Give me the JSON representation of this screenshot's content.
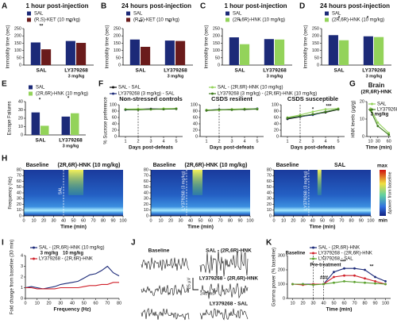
{
  "chart_data": [
    {
      "type": "bar",
      "panel": "A",
      "title": "1 hour post-injection",
      "y_label": "Immobility time (sec)",
      "categories": [
        "SAL",
        "LY379268"
      ],
      "category_notes": [
        null,
        "3 mg/kg"
      ],
      "series": [
        {
          "name": "SAL",
          "color": "#1c2a78",
          "values": [
            155,
            165
          ]
        },
        {
          "name": "(R,S)-KET (10 mg/kg)",
          "color": "#6a1b1b",
          "values": [
            108,
            152
          ]
        }
      ],
      "ylim": [
        0,
        250
      ],
      "yticks": [
        0,
        50,
        100,
        150,
        200,
        250
      ],
      "annotations": [
        "**",
        "*"
      ]
    },
    {
      "type": "bar",
      "panel": "B",
      "title": "24 hours post-injection",
      "y_label": "Immobility time (sec)",
      "categories": [
        "SAL",
        "LY379268"
      ],
      "category_notes": [
        null,
        "3 mg/kg"
      ],
      "series": [
        {
          "name": "SAL",
          "color": "#1c2a78",
          "values": [
            175,
            168
          ]
        },
        {
          "name": "(R,S)-KET (10 mg/kg)",
          "color": "#6a1b1b",
          "values": [
            125,
            165
          ]
        }
      ],
      "ylim": [
        0,
        250
      ],
      "yticks": [
        0,
        50,
        100,
        150,
        200,
        250
      ],
      "annotations": [
        "**",
        "*"
      ]
    },
    {
      "type": "bar",
      "panel": "C",
      "title": "1 hour post-injection",
      "y_label": "Immobility time (sec)",
      "categories": [
        "SAL",
        "LY379268"
      ],
      "category_notes": [
        null,
        "3 mg/kg"
      ],
      "series": [
        {
          "name": "SAL",
          "color": "#1c2a78",
          "values": [
            190,
            178
          ]
        },
        {
          "name": "(2R,6R)-HNK (10 mg/kg)",
          "color": "#93d35a",
          "values": [
            143,
            175
          ]
        }
      ],
      "ylim": [
        0,
        250
      ],
      "yticks": [
        0,
        50,
        100,
        150,
        200,
        250
      ],
      "annotations": [
        "*"
      ]
    },
    {
      "type": "bar",
      "panel": "D",
      "title": "24 hours post-injection",
      "y_label": "Immobility time (sec)",
      "categories": [
        "SAL",
        "LY379268"
      ],
      "category_notes": [
        null,
        "3 mg/kg"
      ],
      "series": [
        {
          "name": "SAL",
          "color": "#1c2a78",
          "values": [
            205,
            197
          ]
        },
        {
          "name": "(2R,6R)-HNK (10 mg/kg)",
          "color": "#93d35a",
          "values": [
            170,
            192
          ]
        }
      ],
      "ylim": [
        0,
        250
      ],
      "yticks": [
        0,
        50,
        100,
        150,
        200,
        250
      ],
      "annotations": [
        "*",
        "*"
      ]
    },
    {
      "type": "bar",
      "panel": "E",
      "y_label": "Escape  Failures",
      "categories": [
        "SAL",
        "LY379268"
      ],
      "category_notes": [
        null,
        "3 mg/kg"
      ],
      "series": [
        {
          "name": "SAL",
          "color": "#1c2a78",
          "values": [
            27,
            22
          ]
        },
        {
          "name": "(2R,6R)-HNK (10 mg/kg)",
          "color": "#93d35a",
          "values": [
            11,
            26
          ]
        }
      ],
      "ylim": [
        0,
        40
      ],
      "yticks": [
        0,
        10,
        20,
        30,
        40
      ],
      "annotations": [
        "*",
        "*"
      ]
    },
    {
      "type": "line",
      "panel": "F",
      "title": "Non-stressed controls",
      "y_label": "% Sucrose preference",
      "x_label": "Days post-defeats",
      "x": [
        1,
        2,
        3,
        4,
        5
      ],
      "xlim": [
        0.5,
        5.5
      ],
      "xticks": [
        1,
        2,
        3,
        4,
        5
      ],
      "ylim": [
        0,
        100
      ],
      "yticks": [
        0,
        20,
        40,
        60,
        80,
        100
      ],
      "event_lines": [
        2
      ],
      "series": [
        {
          "name": "SAL - SAL",
          "color": "#111111",
          "values": [
            85,
            86,
            87,
            86,
            88
          ]
        },
        {
          "name": "LY379268 (3 mg/kg) - SAL",
          "color": "#1c2a78",
          "values": [
            84,
            85,
            86,
            87,
            87
          ]
        },
        {
          "name": "SAL - (2R,6R)-HNK (10 mg/kg)",
          "color": "#93d35a",
          "values": [
            86,
            87,
            85,
            88,
            88
          ]
        },
        {
          "name": "LY379268 (3 mg/kg) - (2R,6R)-HNK (10 mg/kg)",
          "color": "#3f7a1e",
          "values": [
            85,
            84,
            86,
            86,
            87
          ]
        }
      ]
    },
    {
      "type": "line",
      "title": "CSDS resilient",
      "x_label": "Days post-defeats",
      "x": [
        1,
        2,
        3,
        4,
        5
      ],
      "xlim": [
        0.5,
        5.5
      ],
      "xticks": [
        1,
        2,
        3,
        4,
        5
      ],
      "ylim": [
        0,
        100
      ],
      "yticks": [
        0,
        20,
        40,
        60,
        80,
        100
      ],
      "event_lines": [
        2
      ],
      "series": [
        {
          "color": "#111111",
          "values": [
            82,
            84,
            86,
            85,
            87
          ]
        },
        {
          "color": "#1c2a78",
          "values": [
            83,
            85,
            85,
            86,
            88
          ]
        },
        {
          "color": "#93d35a",
          "values": [
            84,
            83,
            86,
            87,
            87
          ]
        },
        {
          "color": "#3f7a1e",
          "values": [
            82,
            85,
            84,
            86,
            86
          ]
        }
      ]
    },
    {
      "type": "line",
      "title": "CSDS susceptible",
      "x_label": "Days post-defeats",
      "x": [
        1,
        2,
        3,
        4,
        5
      ],
      "xlim": [
        0.5,
        5.5
      ],
      "xticks": [
        1,
        2,
        3,
        4,
        5
      ],
      "ylim": [
        0,
        100
      ],
      "yticks": [
        0,
        20,
        40,
        60,
        80,
        100
      ],
      "event_lines": [
        2
      ],
      "annotations": [
        "*",
        "***"
      ],
      "series": [
        {
          "color": "#111111",
          "values": [
            55,
            62,
            70,
            76,
            85
          ]
        },
        {
          "color": "#1c2a78",
          "values": [
            57,
            63,
            68,
            78,
            86
          ]
        },
        {
          "color": "#93d35a",
          "values": [
            60,
            68,
            78,
            86,
            88
          ]
        },
        {
          "color": "#3f7a1e",
          "values": [
            58,
            64,
            70,
            78,
            86
          ]
        }
      ]
    },
    {
      "type": "line",
      "panel": "G",
      "title": "Brain",
      "subtitle": "(2R,6R)-HNK",
      "y_label": "HNK levels (µg/g)",
      "x_label": "Time (min)",
      "x": [
        10,
        30,
        60
      ],
      "xlim": [
        0,
        65
      ],
      "xticks": [
        10,
        30,
        60
      ],
      "ylim": [
        0,
        20
      ],
      "yticks": [
        0,
        10,
        20
      ],
      "annotations": [
        "3 mg/kg"
      ],
      "series": [
        {
          "name": "SAL",
          "color": "#93d35a",
          "values": [
            16,
            8,
            2
          ]
        },
        {
          "name": "LY379268",
          "color": "#3f7a1e",
          "values": [
            15,
            6,
            1
          ]
        }
      ]
    },
    {
      "type": "heatmap",
      "panel": "H",
      "labels": [
        "Baseline",
        "(2R,6R)-HNK (10 mg/kg)"
      ],
      "event_lines": [
        40
      ],
      "event_label": "SAL",
      "y_label": "Frequency (Hz)",
      "x_label": "Time (min)",
      "xlim": [
        0,
        100
      ],
      "xticks": [
        0,
        10,
        20,
        30,
        40,
        50,
        60,
        70,
        80,
        90,
        100
      ],
      "ylim": [
        0,
        80
      ],
      "yticks": [
        0,
        10,
        20,
        30,
        40,
        50,
        60,
        70,
        80
      ]
    },
    {
      "type": "heatmap",
      "labels": [
        "Baseline",
        "(2R,6R)-HNK (10 mg/kg)"
      ],
      "event_lines": [
        36
      ],
      "event_label": "LY379268 (3 mg/kg)",
      "x_label": "Time (min)",
      "xlim": [
        0,
        100
      ],
      "xticks": [
        0,
        10,
        20,
        30,
        40,
        50,
        60,
        70,
        80,
        90,
        100
      ],
      "ylim": [
        0,
        80
      ],
      "yticks": [
        0,
        10,
        20,
        30,
        40,
        50,
        60,
        70,
        80
      ]
    },
    {
      "type": "heatmap",
      "labels": [
        "Baseline",
        "SAL"
      ],
      "event_lines": [
        36
      ],
      "event_label": "LY379268 (3 mg/kg)",
      "x_label": "Time (min)",
      "xlim": [
        0,
        100
      ],
      "xticks": [
        0,
        10,
        20,
        30,
        40,
        50,
        60,
        70,
        80,
        90,
        100
      ],
      "ylim": [
        0,
        80
      ],
      "yticks": [
        0,
        10,
        20,
        30,
        40,
        50,
        60,
        70,
        80
      ],
      "colorbar_labels": [
        "max",
        "min"
      ],
      "colorbar_title": "Δpower from baseline"
    },
    {
      "type": "line",
      "panel": "I",
      "y_label": "Fold change from baseline (30 min)",
      "x_label": "Frequency (Hz)",
      "x": [
        0,
        5,
        10,
        15,
        20,
        25,
        30,
        35,
        40,
        45,
        50,
        55,
        60,
        65,
        70,
        75,
        80
      ],
      "xlim": [
        0,
        80
      ],
      "xticks": [
        0,
        10,
        20,
        30,
        40,
        50,
        60,
        70,
        80
      ],
      "ylim": [
        0,
        4
      ],
      "yticks": [
        0,
        1,
        2,
        3,
        4
      ],
      "annotations": [
        "3 mg/kg",
        "10 mg/kg"
      ],
      "series": [
        {
          "name": "SAL - (2R,6R)-HNK (10 mg/kg)",
          "color": "#1c2a78",
          "values": [
            1.0,
            1.1,
            1.0,
            0.9,
            1.0,
            1.1,
            1.3,
            1.4,
            1.5,
            1.6,
            1.9,
            2.2,
            2.3,
            2.6,
            3.0,
            2.4,
            2.1
          ]
        },
        {
          "name": "LY379268 - (2R,6R)-HNK",
          "color": "#d0202a",
          "values": [
            1.0,
            1.0,
            0.9,
            0.9,
            0.9,
            0.9,
            1.0,
            1.0,
            1.0,
            1.0,
            1.1,
            1.2,
            1.2,
            1.3,
            1.3,
            1.5,
            1.5
          ]
        }
      ]
    },
    {
      "type": "traces",
      "panel": "J",
      "labels": [
        "Baseline",
        "SAL - (2R,6R)-HNK",
        "LY379268 - (2R,6R)-HNK",
        "LY379268 - SAL"
      ],
      "scale_labels": [
        "25 µV",
        "240 ms"
      ]
    },
    {
      "type": "line",
      "panel": "K",
      "y_label": "Gamma power (% baseline)",
      "x_label": "Time (min)",
      "x": [
        10,
        20,
        30,
        40,
        50,
        60,
        70,
        80,
        90,
        100
      ],
      "xlim": [
        5,
        105
      ],
      "xticks": [
        10,
        20,
        30,
        40,
        50,
        60,
        70,
        80,
        90,
        100
      ],
      "ylim": [
        0,
        300
      ],
      "yticks": [
        0,
        100,
        200,
        300
      ],
      "event_lines": [
        30,
        40
      ],
      "annotations": [
        "Baseline",
        "Pre-treatment",
        "###",
        "***",
        "**"
      ],
      "series": [
        {
          "name": "SAL - (2R,6R)-HNK",
          "color": "#1c2a78",
          "values": [
            100,
            100,
            100,
            100,
            185,
            210,
            210,
            200,
            150,
            120
          ]
        },
        {
          "name": "LY379268 - (2R,6R)-HNK",
          "color": "#d0202a",
          "values": [
            100,
            95,
            100,
            100,
            150,
            160,
            160,
            140,
            120,
            100
          ]
        },
        {
          "name": "LY379268 - SAL",
          "color": "#5aa02c",
          "values": [
            100,
            100,
            95,
            100,
            110,
            120,
            115,
            110,
            105,
            100
          ]
        }
      ]
    }
  ]
}
